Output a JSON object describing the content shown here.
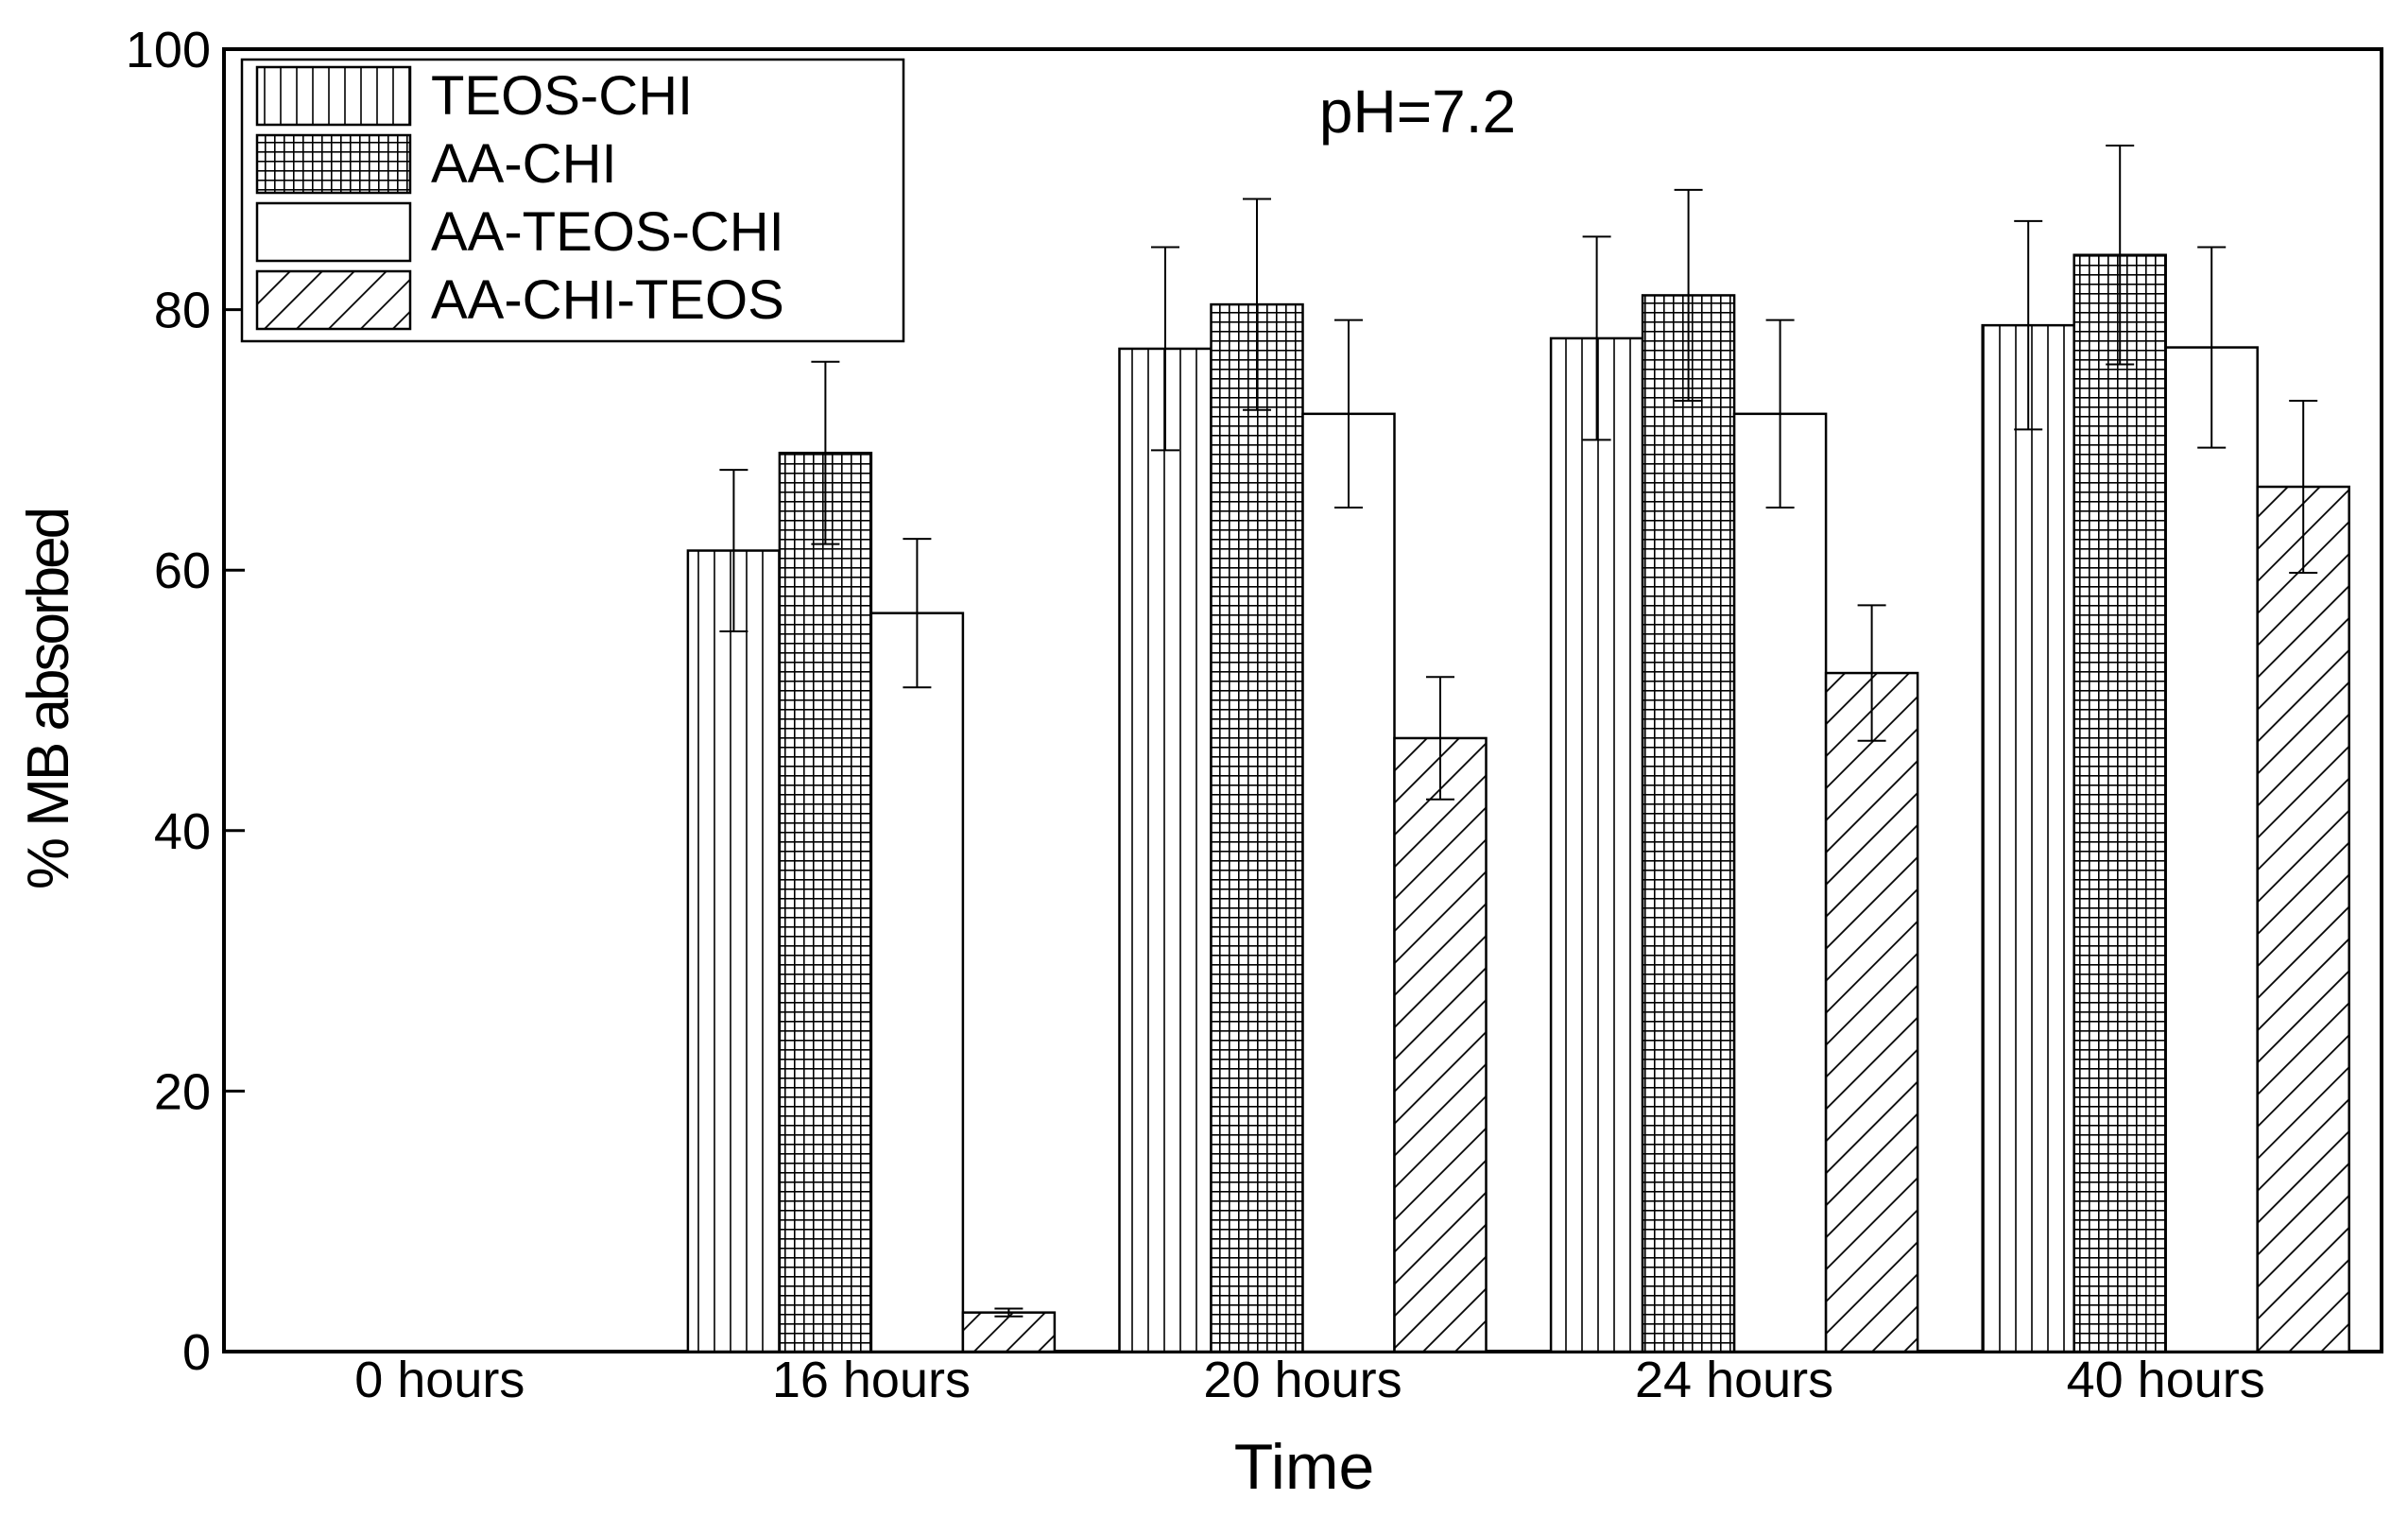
{
  "chart_data": {
    "type": "bar",
    "title": "",
    "annotation": "pH=7.2",
    "xlabel": "Time",
    "ylabel": "% MB absorbed",
    "ylim": [
      0,
      100
    ],
    "yticks": [
      0,
      20,
      40,
      60,
      80,
      100
    ],
    "grid": false,
    "legend_position": "top-left",
    "categories": [
      "0 hours",
      "16 hours",
      "20 hours",
      "24 hours",
      "40 hours"
    ],
    "series": [
      {
        "name": "TEOS-CHI",
        "pattern": "vertical-lines",
        "values": [
          0,
          61.5,
          77,
          77.8,
          78.8
        ],
        "errors": [
          0,
          6.2,
          7.8,
          7.8,
          8
        ]
      },
      {
        "name": "AA-CHI",
        "pattern": "grid",
        "values": [
          0,
          69,
          80.4,
          81.1,
          84.2
        ],
        "errors": [
          0,
          7,
          8.1,
          8.1,
          8.4
        ]
      },
      {
        "name": "AA-TEOS-CHI",
        "pattern": "blank",
        "values": [
          0,
          56.7,
          72,
          72,
          77.1
        ],
        "errors": [
          0,
          5.7,
          7.2,
          7.2,
          7.7
        ]
      },
      {
        "name": "AA-CHI-TEOS",
        "pattern": "diagonal-lines",
        "values": [
          0,
          3,
          47.1,
          52.1,
          66.4
        ],
        "errors": [
          0,
          0.3,
          4.7,
          5.2,
          6.6
        ]
      }
    ]
  }
}
